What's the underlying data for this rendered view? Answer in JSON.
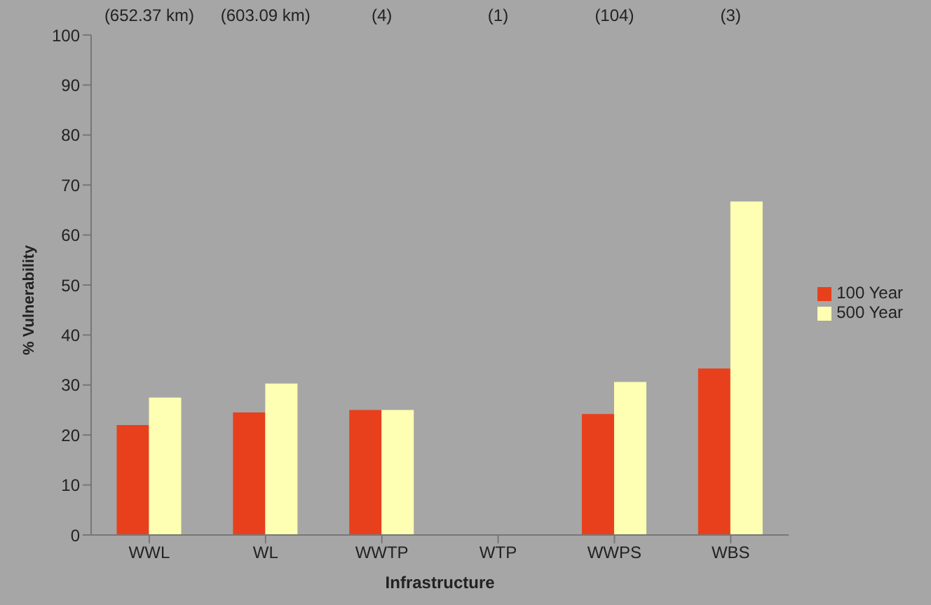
{
  "chart_data": {
    "type": "bar",
    "xlabel": "Infrastructure",
    "ylabel": "% Vulnerability",
    "categories": [
      "WWL",
      "WL",
      "WWTP",
      "WTP",
      "WWPS",
      "WBS"
    ],
    "series": [
      {
        "name": "100 Year",
        "color": "#e8401c",
        "values": [
          22,
          24.5,
          25,
          0,
          24.2,
          33.3
        ]
      },
      {
        "name": "500 Year",
        "color": "#ffffb3",
        "values": [
          27.5,
          30.3,
          25,
          0,
          30.6,
          66.7
        ]
      }
    ],
    "ylim": [
      0,
      100
    ],
    "yticks": [
      0,
      10,
      20,
      30,
      40,
      50,
      60,
      70,
      80,
      90,
      100
    ],
    "grid": false,
    "legend": "right",
    "annotations": [
      "(652.37 km)",
      "(603.09 km)",
      "(4)",
      "(1)",
      "(104)",
      "(3)"
    ]
  }
}
